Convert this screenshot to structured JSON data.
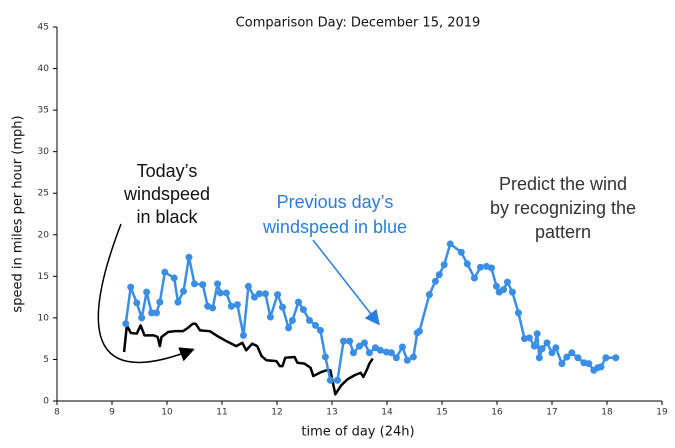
{
  "chart_data": {
    "type": "line",
    "title": "Comparison Day: December 15, 2019",
    "x_label": "time of day (24h)",
    "y_label": "speed in miles per hour (mph)",
    "xlim": [
      8,
      19
    ],
    "xticks": [
      8,
      9,
      10,
      11,
      12,
      13,
      14,
      15,
      16,
      17,
      18,
      19
    ],
    "ylim": [
      0,
      45
    ],
    "yticks": [
      0,
      5,
      10,
      15,
      20,
      25,
      30,
      35,
      40,
      45
    ],
    "grid": false,
    "series": [
      {
        "color": "#000000",
        "marker": false,
        "x": [
          9.22,
          9.27,
          9.34,
          9.45,
          9.52,
          9.59,
          9.76,
          9.83,
          9.87,
          9.9,
          10.02,
          10.14,
          10.29,
          10.38,
          10.47,
          10.52,
          10.6,
          10.78,
          10.92,
          11.08,
          11.26,
          11.37,
          11.44,
          11.55,
          11.64,
          11.72,
          11.81,
          11.99,
          12.05,
          12.1,
          12.15,
          12.32,
          12.37,
          12.5,
          12.61,
          12.66,
          12.81,
          12.9,
          12.97,
          13.06,
          13.17,
          13.28,
          13.41,
          13.52,
          13.57,
          13.63,
          13.68,
          13.74
        ],
        "values": [
          5.9,
          9.1,
          8.2,
          8.1,
          9.1,
          7.9,
          7.9,
          7.7,
          6.6,
          7.7,
          8.3,
          8.4,
          8.4,
          8.8,
          9.3,
          9.3,
          8.5,
          8.4,
          7.8,
          7.2,
          6.6,
          7.0,
          6.1,
          6.9,
          6.6,
          5.4,
          4.9,
          4.8,
          4.2,
          4.2,
          5.2,
          5.3,
          4.6,
          4.5,
          4.0,
          3.0,
          3.5,
          3.7,
          3.7,
          0.8,
          1.9,
          2.6,
          3.1,
          3.4,
          2.9,
          3.7,
          4.5,
          5.1
        ]
      },
      {
        "color": "#3a8ee6",
        "marker": true,
        "x": [
          9.25,
          9.34,
          9.45,
          9.54,
          9.63,
          9.72,
          9.81,
          9.87,
          9.96,
          10.13,
          10.2,
          10.3,
          10.4,
          10.5,
          10.65,
          10.74,
          10.83,
          10.92,
          10.97,
          11.08,
          11.17,
          11.28,
          11.39,
          11.48,
          11.59,
          11.68,
          11.79,
          11.88,
          12.01,
          12.1,
          12.21,
          12.28,
          12.39,
          12.48,
          12.59,
          12.7,
          12.79,
          12.88,
          12.97,
          13.1,
          13.21,
          13.32,
          13.39,
          13.5,
          13.59,
          13.68,
          13.79,
          13.88,
          13.99,
          14.08,
          14.17,
          14.28,
          14.37,
          14.48,
          14.55,
          14.59,
          14.77,
          14.88,
          14.95,
          15.04,
          15.15,
          15.35,
          15.46,
          15.59,
          15.7,
          15.81,
          15.9,
          15.99,
          16.04,
          16.12,
          16.19,
          16.28,
          16.39,
          16.5,
          16.59,
          16.68,
          16.73,
          16.77,
          16.82,
          16.91,
          17.0,
          17.07,
          17.18,
          17.27,
          17.36,
          17.47,
          17.58,
          17.67,
          17.76,
          17.83,
          17.89,
          17.98,
          18.16
        ],
        "values": [
          9.3,
          13.7,
          11.8,
          10.0,
          13.1,
          10.6,
          10.6,
          11.9,
          15.5,
          14.8,
          11.9,
          13.2,
          17.3,
          14.1,
          14.0,
          11.4,
          11.2,
          14.1,
          13.0,
          13.0,
          11.4,
          11.6,
          7.9,
          13.8,
          12.5,
          12.9,
          12.9,
          10.1,
          12.8,
          11.3,
          8.8,
          9.7,
          11.9,
          11.0,
          9.7,
          9.1,
          8.5,
          5.3,
          2.5,
          2.5,
          7.2,
          7.2,
          5.8,
          6.6,
          7.0,
          5.8,
          6.4,
          6.1,
          5.9,
          5.8,
          5.2,
          6.5,
          4.9,
          5.3,
          8.2,
          8.4,
          12.8,
          14.4,
          15.2,
          16.4,
          18.9,
          17.9,
          16.5,
          14.8,
          16.1,
          16.2,
          16.0,
          13.8,
          13.1,
          13.4,
          14.3,
          13.1,
          10.6,
          7.5,
          7.6,
          6.6,
          8.1,
          5.2,
          6.3,
          7.0,
          5.8,
          6.4,
          4.5,
          5.3,
          5.8,
          5.2,
          4.6,
          4.5,
          3.7,
          4.0,
          4.1,
          5.2,
          5.2
        ]
      }
    ],
    "annotations": [
      {
        "lines": [
          "Today’s",
          "windspeed",
          "in black"
        ],
        "color": "#111111"
      },
      {
        "lines": [
          "Previous day’s",
          "windspeed in blue"
        ],
        "color": "#2a7de1"
      },
      {
        "lines": [
          "Predict the wind",
          "by recognizing the",
          "pattern"
        ],
        "color": "#333333"
      }
    ]
  }
}
